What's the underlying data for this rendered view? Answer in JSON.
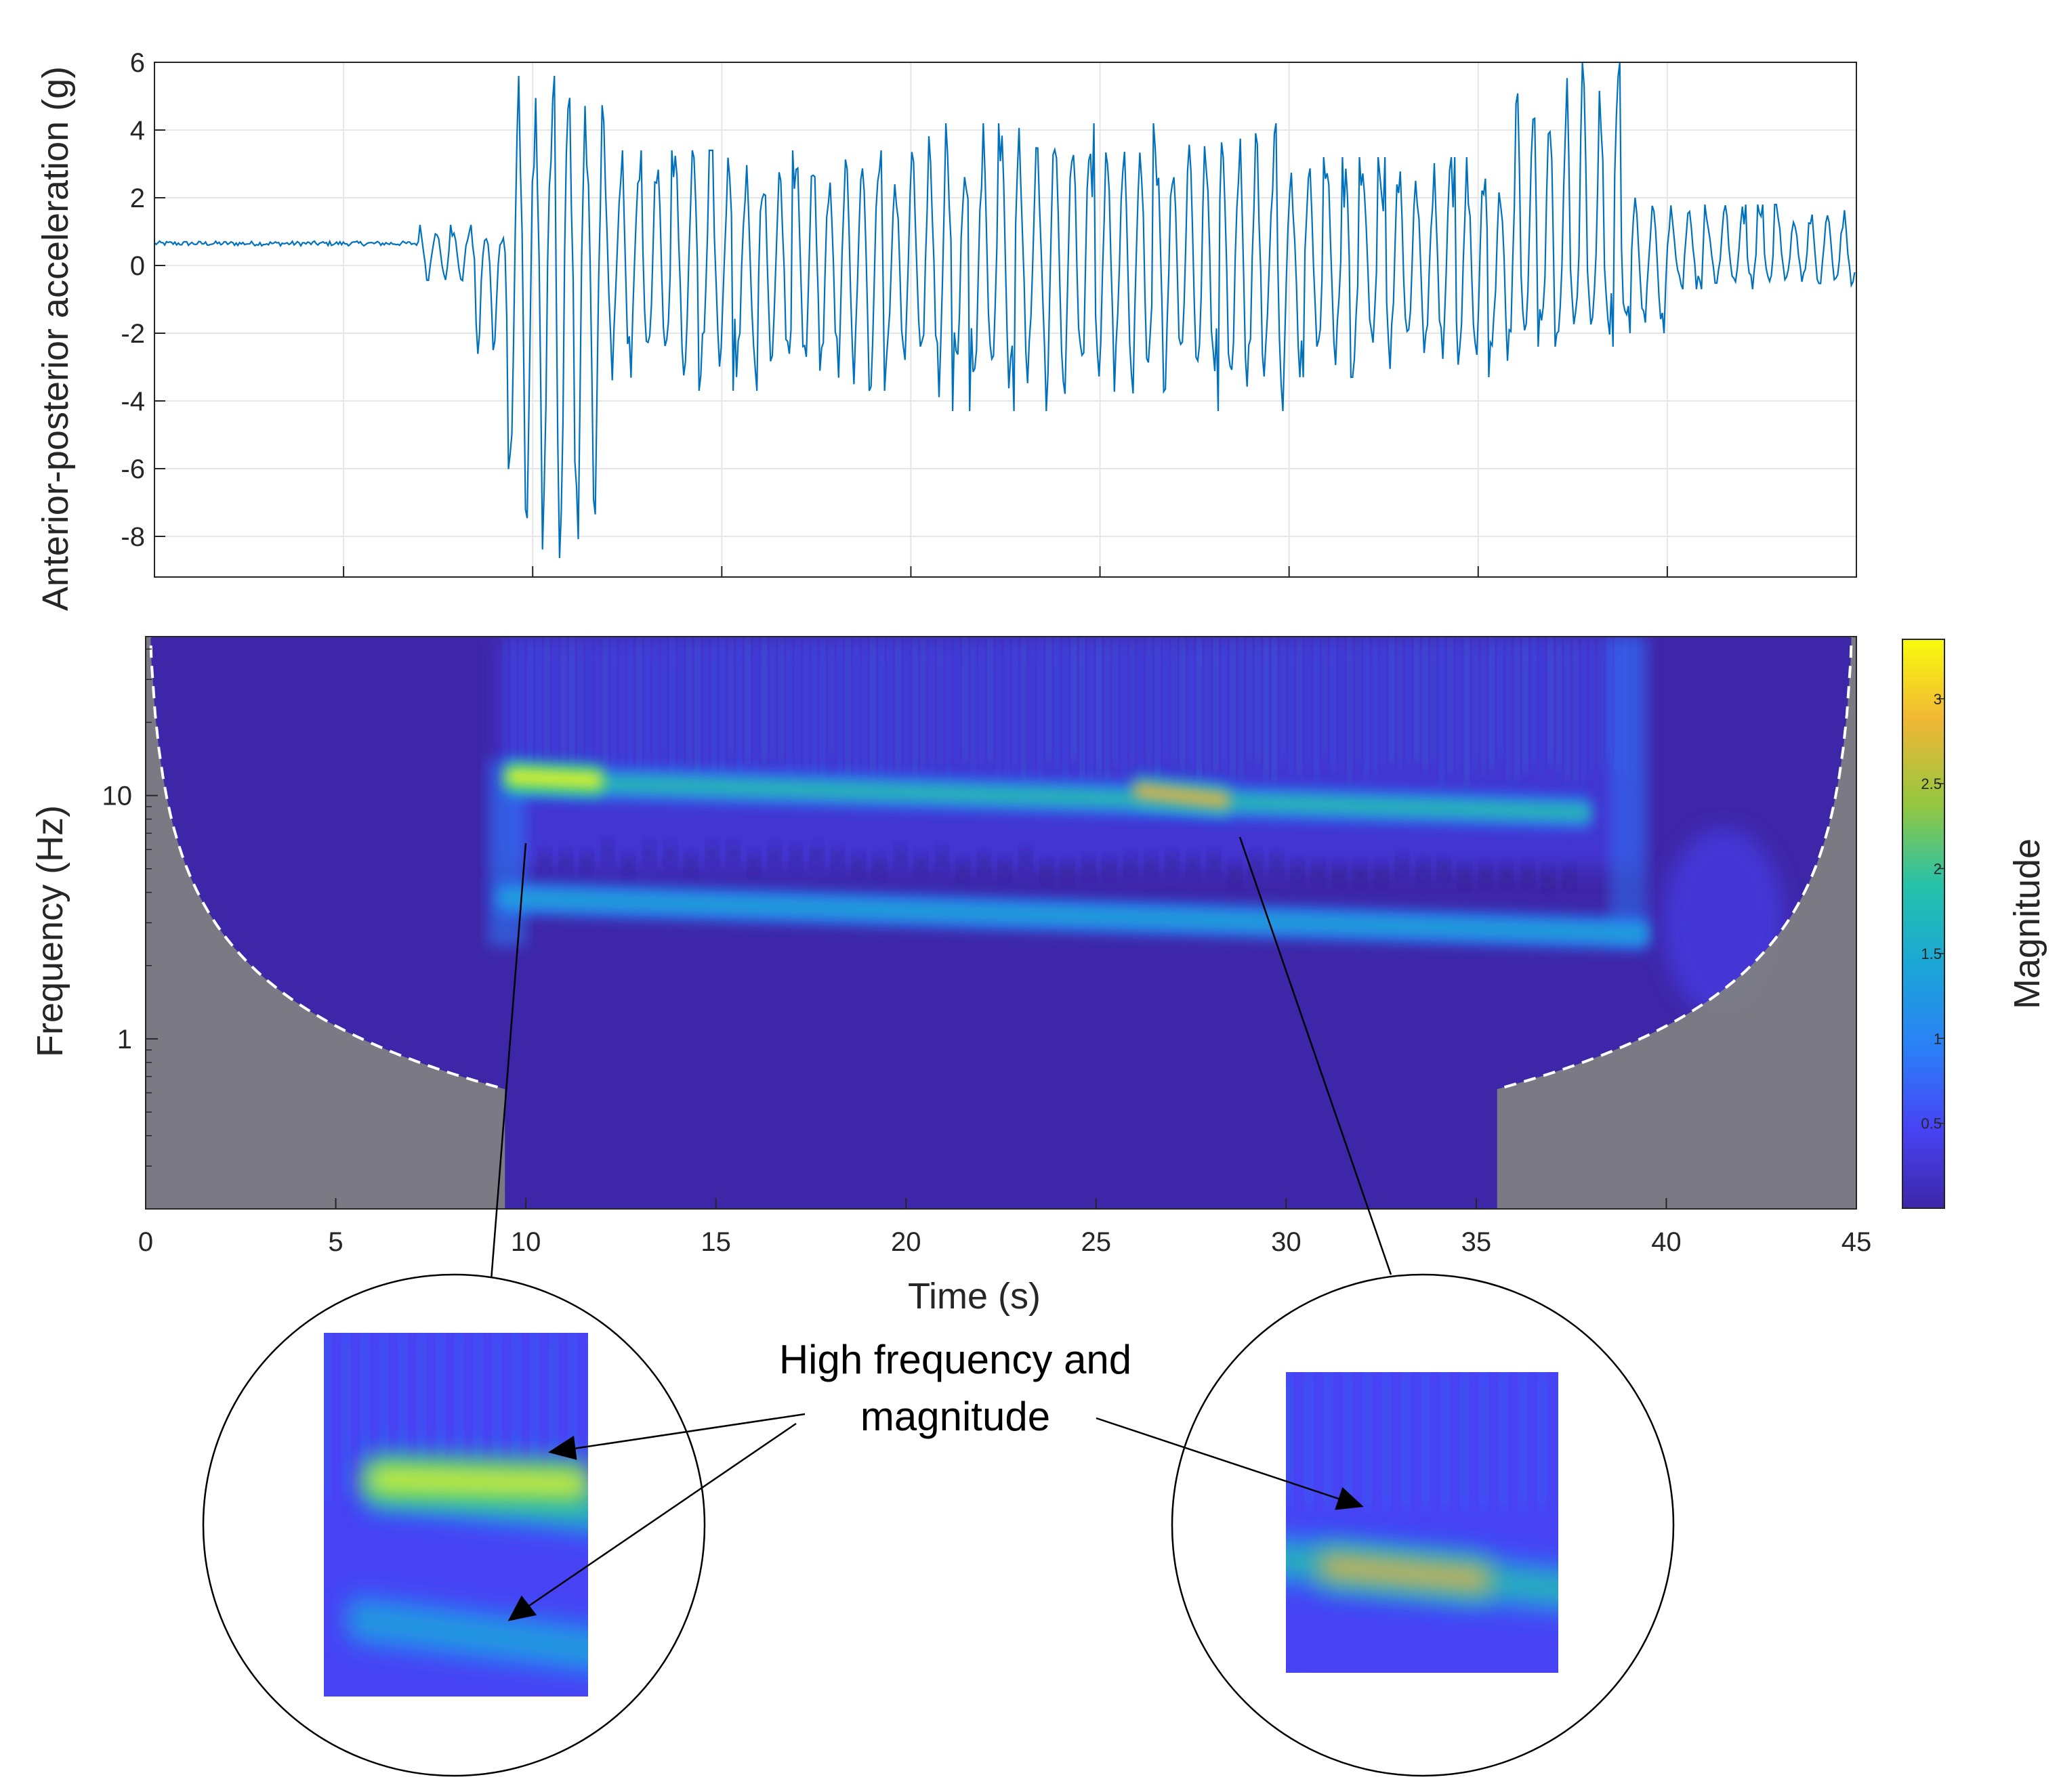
{
  "chart_data": [
    {
      "type": "line",
      "ylabel": "Anterior-posterior acceleration (g)",
      "xlim": [
        0,
        45
      ],
      "ylim": [
        -9.2,
        6
      ],
      "yticks": [
        6,
        4,
        2,
        0,
        -2,
        -4,
        -6,
        -8
      ],
      "xticks": [
        0,
        5,
        10,
        15,
        20,
        25,
        30,
        35,
        40,
        45
      ],
      "grid": true,
      "series_color": "#0072BD",
      "segments": [
        {
          "t0": 0,
          "t1": 7,
          "center": 0.65,
          "pos_peak": 0.72,
          "neg_peak": 0.58
        },
        {
          "t0": 7,
          "t1": 8.5,
          "center": 0.4,
          "pos_peak": 1.2,
          "neg_peak": -0.6
        },
        {
          "t0": 8.5,
          "t1": 9.3,
          "center": 0.0,
          "pos_peak": 1.0,
          "neg_peak": -3.0
        },
        {
          "t0": 9.3,
          "t1": 12,
          "center": 0.0,
          "pos_peak": 5.6,
          "neg_peak": -9.0
        },
        {
          "t0": 12,
          "t1": 20,
          "center": 0.0,
          "pos_peak": 3.4,
          "neg_peak": -3.7
        },
        {
          "t0": 20,
          "t1": 30,
          "center": 0.0,
          "pos_peak": 4.2,
          "neg_peak": -4.3
        },
        {
          "t0": 30,
          "t1": 36,
          "center": 0.0,
          "pos_peak": 3.2,
          "neg_peak": -3.3
        },
        {
          "t0": 36,
          "t1": 39,
          "center": 0.0,
          "pos_peak": 6.0,
          "neg_peak": -2.4
        },
        {
          "t0": 39,
          "t1": 40,
          "center": 0.0,
          "pos_peak": 2.0,
          "neg_peak": -2.0
        },
        {
          "t0": 40,
          "t1": 45,
          "center": 0.3,
          "pos_peak": 1.8,
          "neg_peak": -0.7
        }
      ]
    },
    {
      "type": "heatmap",
      "xlabel": "Time (s)",
      "ylabel": "Frequency (Hz)",
      "xlim": [
        0,
        45
      ],
      "ylim": [
        0.2,
        45
      ],
      "yscale": "log",
      "xticks": [
        0,
        5,
        10,
        15,
        20,
        25,
        30,
        35,
        40,
        45
      ],
      "yticks": [
        10,
        1
      ],
      "colorbar": {
        "label": "Magnitude",
        "range": [
          0,
          3.35
        ],
        "ticks": [
          0.5,
          1,
          1.5,
          2,
          2.5,
          3
        ],
        "colormap": [
          "#3e26a8",
          "#4743f4",
          "#2b7ff8",
          "#1ba7d6",
          "#27c2a9",
          "#95c740",
          "#f1b735",
          "#f9fb0e"
        ]
      },
      "cone_of_influence_color": "#808080",
      "bands": [
        {
          "t0": 9.3,
          "t1": 39.5,
          "freq_hz_start": 3.8,
          "freq_hz_end": 2.7,
          "magnitude": 1.5
        },
        {
          "t0": 9.5,
          "t1": 38,
          "freq_hz_start": 11.5,
          "freq_hz_end": 8.5,
          "magnitude": 1.8
        },
        {
          "t0": 9.5,
          "t1": 12,
          "freq_hz_start": 12,
          "freq_hz_end": 11.5,
          "magnitude": 3.2
        },
        {
          "t0": 26,
          "t1": 28.5,
          "freq_hz_start": 10.5,
          "freq_hz_end": 9.5,
          "magnitude": 2.7
        }
      ]
    }
  ],
  "annotation": {
    "line1": "High frequency and",
    "line2": "magnitude"
  }
}
